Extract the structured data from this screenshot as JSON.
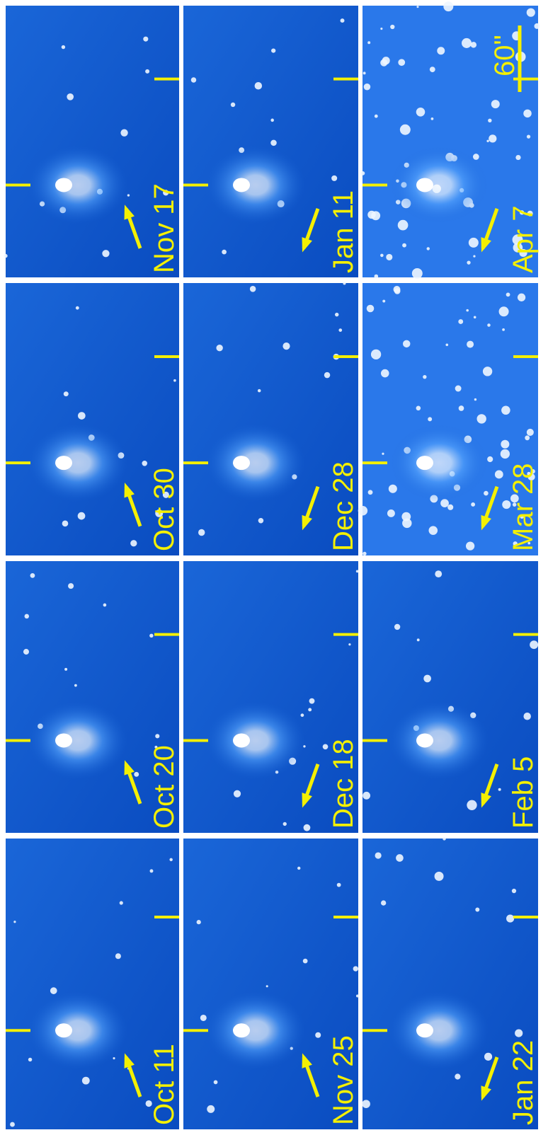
{
  "rows": [
    [
      "Nov 17",
      "Jan 11",
      "Apr 7"
    ],
    [
      "Oct 30",
      "Dec 28",
      "Mar 28"
    ],
    [
      "Oct 20",
      "Dec 18",
      "Feb 5"
    ],
    [
      "Oct 11",
      "Nov 25",
      "Jan 22"
    ]
  ],
  "scale_bar": {
    "label": "60\""
  }
}
